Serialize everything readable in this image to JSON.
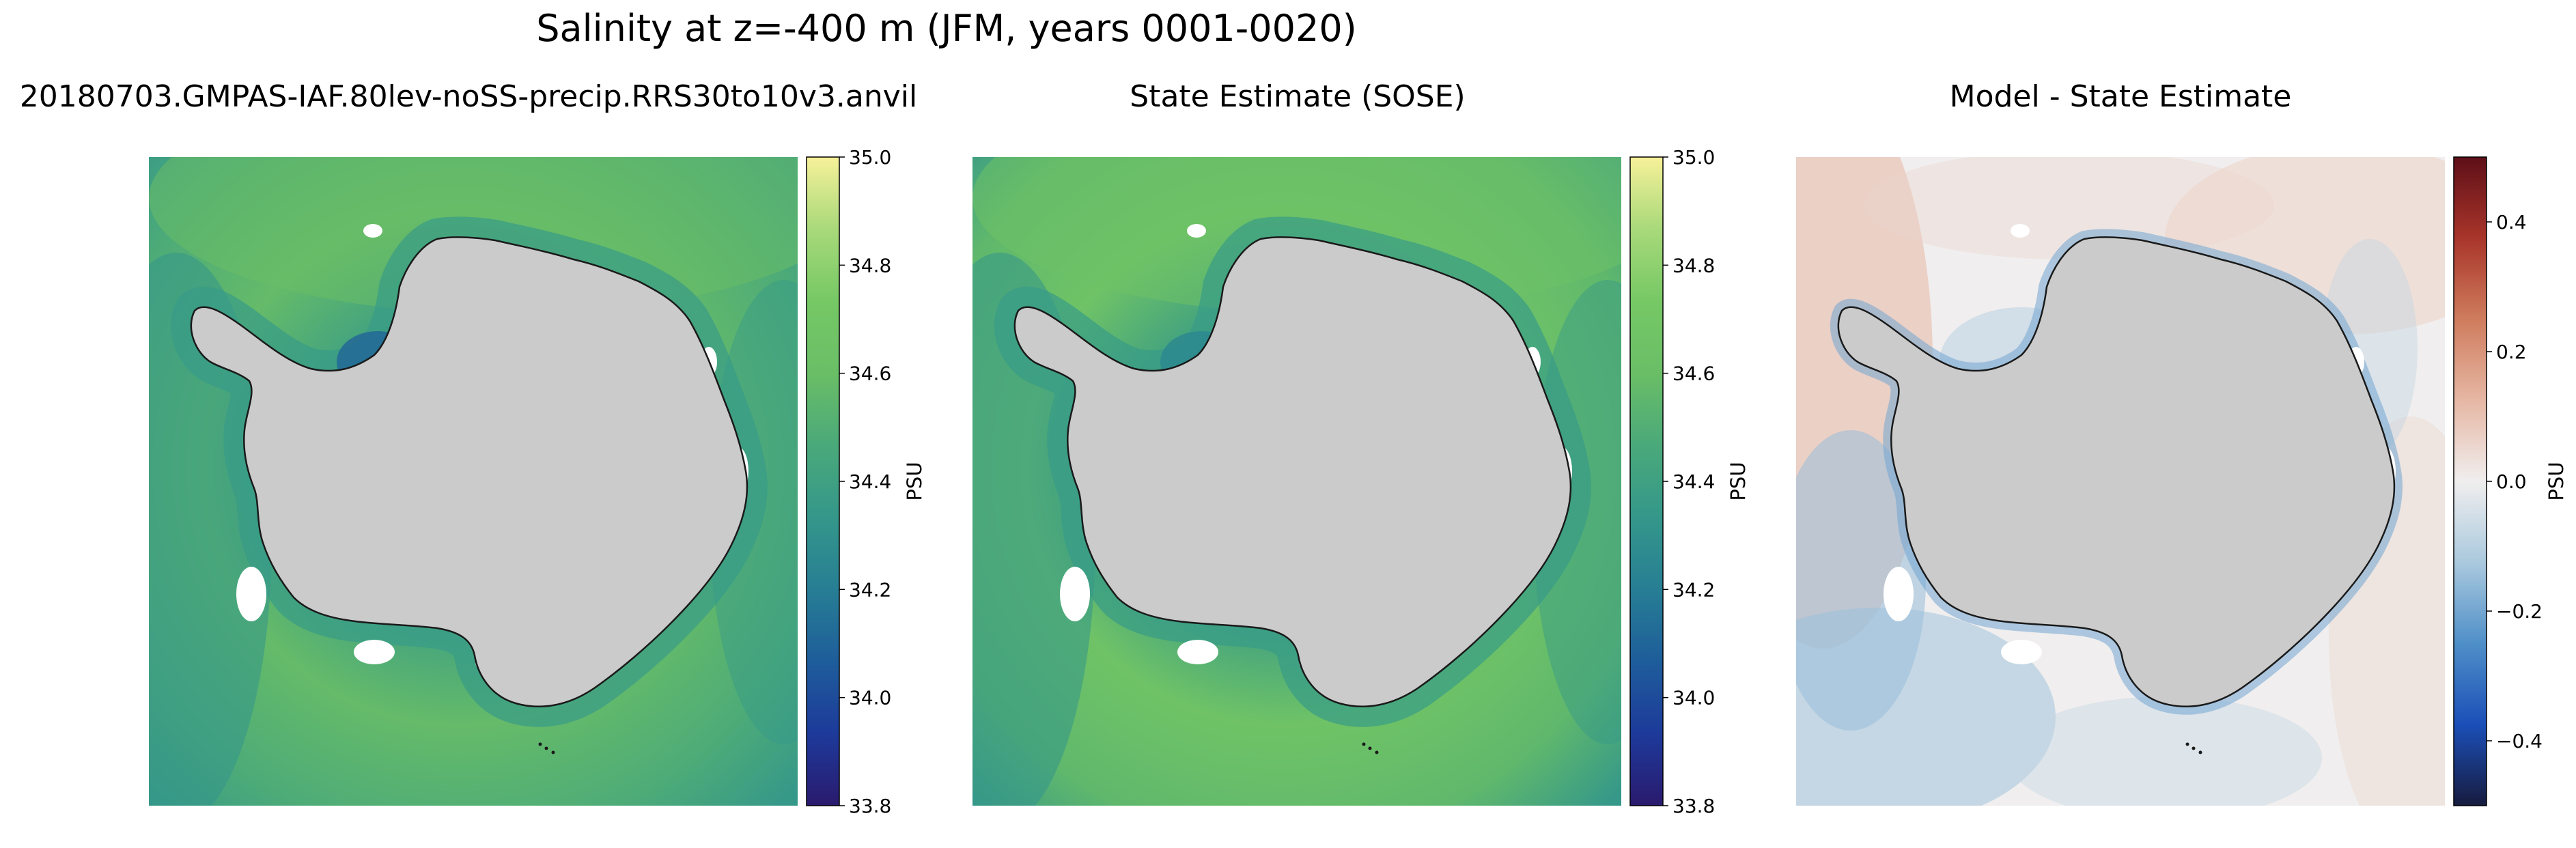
{
  "figure": {
    "title": "Salinity at z=-400 m (JFM, years 0001-0020)"
  },
  "panels": [
    {
      "title": "20180703.GMPAS-IAF.80lev-noSS-precip.RRS30to10v3.anvil"
    },
    {
      "title": "State Estimate (SOSE)"
    },
    {
      "title": "Model - State Estimate"
    }
  ],
  "colors": {
    "land": "#cbcbcb",
    "coast": "#1a1a1a",
    "nodata": "#ffffff",
    "haline": [
      "#2a1a6e",
      "#1d3a9a",
      "#1e5d9b",
      "#277e94",
      "#34978a",
      "#4aa97a",
      "#6abe66",
      "#76c865",
      "#a8d97a",
      "#f7f199"
    ],
    "balance": [
      "#171b3e",
      "#1b4fb8",
      "#4f8fc8",
      "#aac9de",
      "#f0eeee",
      "#e6b7a4",
      "#cf7c5d",
      "#a9352a",
      "#5e0f18"
    ]
  },
  "chart_data": [
    {
      "type": "heatmap",
      "title": "20180703.GMPAS-IAF.80lev-noSS-precip.RRS30to10v3.anvil",
      "colormap": "haline",
      "colorbar": {
        "label": "PSU",
        "vmin": 33.8,
        "vmax": 35.0,
        "ticks": [
          "33.8",
          "34.0",
          "34.2",
          "34.4",
          "34.6",
          "34.8",
          "35.0"
        ]
      },
      "field": {
        "background": 34.48,
        "shelf_break": 34.36,
        "north": 34.6,
        "fresh_patch": 34.08
      }
    },
    {
      "type": "heatmap",
      "title": "State Estimate (SOSE)",
      "colormap": "haline",
      "colorbar": {
        "label": "PSU",
        "vmin": 33.8,
        "vmax": 35.0,
        "ticks": [
          "33.8",
          "34.0",
          "34.2",
          "34.4",
          "34.6",
          "34.8",
          "35.0"
        ]
      },
      "field": {
        "background": 34.56,
        "shelf_break": 34.36,
        "north": 34.64,
        "fresh_patch": 34.24
      }
    },
    {
      "type": "heatmap",
      "title": "Model - State Estimate",
      "colormap": "balance",
      "colorbar": {
        "label": "PSU",
        "vmin": -0.5,
        "vmax": 0.5,
        "ticks": [
          "−0.4",
          "−0.2",
          "0.0",
          "0.2",
          "0.4"
        ]
      },
      "field": {
        "background": 0.0,
        "west_negative": -0.15,
        "shelf_negative": -0.2,
        "east_positive": 0.08
      }
    }
  ]
}
